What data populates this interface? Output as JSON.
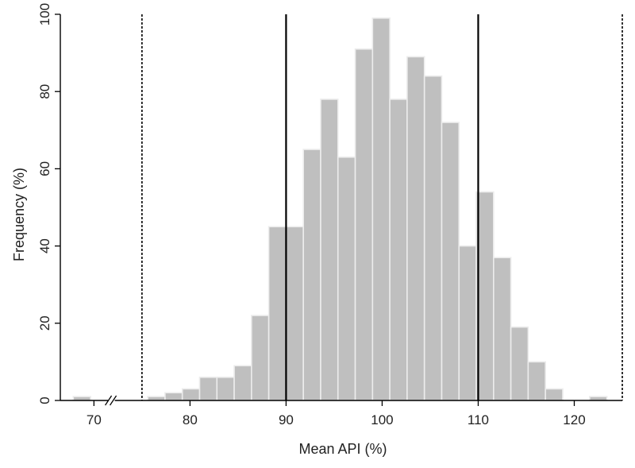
{
  "chart_data": {
    "type": "bar",
    "xlabel": "Mean API (%)",
    "ylabel": "Frequency (%)",
    "xlim": [
      66.5,
      125
    ],
    "ylim": [
      0,
      100
    ],
    "x_ticks": [
      70,
      80,
      90,
      100,
      110,
      120
    ],
    "x_tick_labels": [
      "70",
      "80",
      "90",
      "100",
      "110",
      "120"
    ],
    "y_ticks": [
      0,
      20,
      40,
      60,
      80,
      100
    ],
    "y_tick_labels": [
      "0",
      "20",
      "40",
      "60",
      "80",
      "100"
    ],
    "x_axis_break_at": 72,
    "bin_width": 1.8,
    "bins": [
      {
        "x": 68.75,
        "value": 1
      },
      {
        "x": 76.5,
        "value": 1
      },
      {
        "x": 78.3,
        "value": 2
      },
      {
        "x": 80.1,
        "value": 3
      },
      {
        "x": 81.9,
        "value": 6
      },
      {
        "x": 83.7,
        "value": 6
      },
      {
        "x": 85.5,
        "value": 9
      },
      {
        "x": 87.3,
        "value": 22
      },
      {
        "x": 89.1,
        "value": 45
      },
      {
        "x": 90.9,
        "value": 45
      },
      {
        "x": 92.7,
        "value": 65
      },
      {
        "x": 94.5,
        "value": 78
      },
      {
        "x": 96.3,
        "value": 63
      },
      {
        "x": 98.1,
        "value": 91
      },
      {
        "x": 99.9,
        "value": 99
      },
      {
        "x": 101.7,
        "value": 78
      },
      {
        "x": 103.5,
        "value": 89
      },
      {
        "x": 105.3,
        "value": 84
      },
      {
        "x": 107.1,
        "value": 72
      },
      {
        "x": 108.9,
        "value": 40
      },
      {
        "x": 110.7,
        "value": 54
      },
      {
        "x": 112.5,
        "value": 37
      },
      {
        "x": 114.3,
        "value": 19
      },
      {
        "x": 116.1,
        "value": 10
      },
      {
        "x": 117.9,
        "value": 3
      },
      {
        "x": 122.5,
        "value": 1
      }
    ],
    "reference_lines": [
      {
        "x": 75,
        "style": "dashed"
      },
      {
        "x": 90,
        "style": "solid"
      },
      {
        "x": 110,
        "style": "solid"
      },
      {
        "x": 125,
        "style": "dashed"
      }
    ],
    "grid": false,
    "legend": "none",
    "colors": {
      "bar_fill": "#bfbfbf",
      "bar_stroke": "#ececec",
      "line": "#000000",
      "axis": "#000000"
    }
  }
}
